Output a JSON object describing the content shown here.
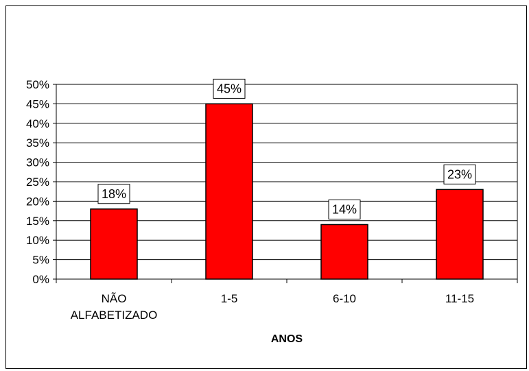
{
  "chart_data": {
    "type": "bar",
    "categories": [
      [
        "NÃO",
        "ALFABETIZADO"
      ],
      [
        "1-5"
      ],
      [
        "6-10"
      ],
      [
        "11-15"
      ]
    ],
    "values": [
      18,
      45,
      14,
      23
    ],
    "value_labels": [
      "18%",
      "45%",
      "14%",
      "23%"
    ],
    "y_ticks": [
      "0%",
      "5%",
      "10%",
      "15%",
      "20%",
      "25%",
      "30%",
      "35%",
      "40%",
      "45%",
      "50%"
    ],
    "ylim": [
      0,
      50
    ],
    "xlabel": "ANOS",
    "ylabel": "",
    "grid": true,
    "legend": "none",
    "bar_color": "#ff0000"
  }
}
